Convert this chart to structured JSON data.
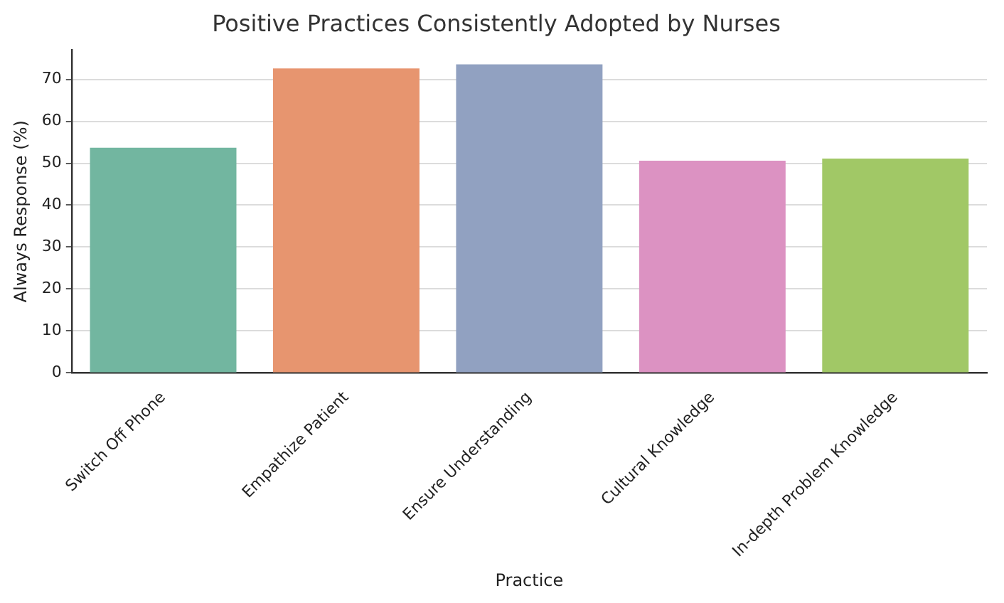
{
  "chart_data": {
    "type": "bar",
    "title": "Positive Practices Consistently Adopted by Nurses",
    "xlabel": "Practice",
    "ylabel": "Always Response (%)",
    "categories": [
      "Switch Off Phone",
      "Empathize Patient",
      "Ensure Understanding",
      "Cultural Knowledge",
      "In-depth Problem Knowledge"
    ],
    "values": [
      53.7,
      72.6,
      73.6,
      50.6,
      51.1
    ],
    "colors": [
      "#72b6a0",
      "#e7956f",
      "#91a1c1",
      "#dc92c2",
      "#a1c866"
    ],
    "ylim": [
      0,
      77
    ],
    "yticks": [
      0,
      10,
      20,
      30,
      40,
      50,
      60,
      70
    ],
    "grid": "y",
    "legend": false
  }
}
